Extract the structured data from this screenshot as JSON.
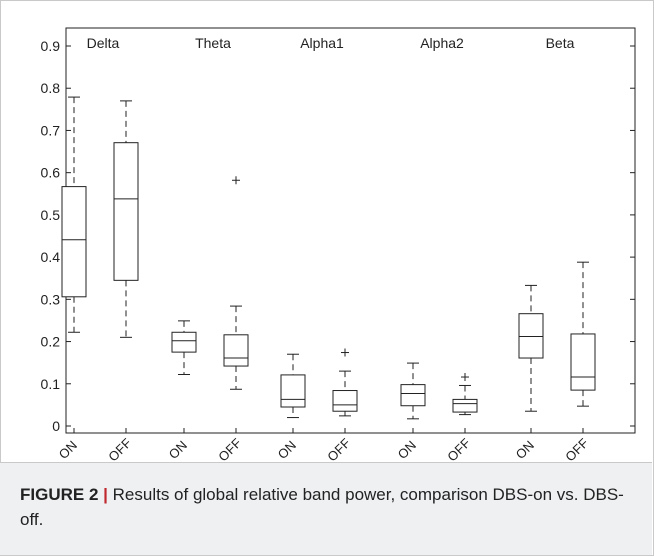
{
  "chart_data": {
    "type": "box",
    "ylim": [
      0,
      0.9
    ],
    "yticks": [
      0,
      0.1,
      0.2,
      0.3,
      0.4,
      0.5,
      0.6,
      0.7,
      0.8,
      0.9
    ],
    "groups": [
      {
        "name": "Delta",
        "boxes": [
          {
            "label": "ON",
            "whisker_low": 0.222,
            "q1": 0.306,
            "median": 0.441,
            "q3": 0.567,
            "whisker_high": 0.779,
            "outliers": []
          },
          {
            "label": "OFF",
            "whisker_low": 0.21,
            "q1": 0.345,
            "median": 0.538,
            "q3": 0.671,
            "whisker_high": 0.77,
            "outliers": []
          }
        ]
      },
      {
        "name": "Theta",
        "boxes": [
          {
            "label": "ON",
            "whisker_low": 0.122,
            "q1": 0.175,
            "median": 0.202,
            "q3": 0.222,
            "whisker_high": 0.249,
            "outliers": []
          },
          {
            "label": "OFF",
            "whisker_low": 0.087,
            "q1": 0.142,
            "median": 0.161,
            "q3": 0.216,
            "whisker_high": 0.284,
            "outliers": [
              0.582
            ]
          }
        ]
      },
      {
        "name": "Alpha1",
        "boxes": [
          {
            "label": "ON",
            "whisker_low": 0.02,
            "q1": 0.045,
            "median": 0.063,
            "q3": 0.121,
            "whisker_high": 0.17,
            "outliers": []
          },
          {
            "label": "OFF",
            "whisker_low": 0.024,
            "q1": 0.035,
            "median": 0.05,
            "q3": 0.084,
            "whisker_high": 0.13,
            "outliers": [
              0.174
            ]
          }
        ]
      },
      {
        "name": "Alpha2",
        "boxes": [
          {
            "label": "ON",
            "whisker_low": 0.017,
            "q1": 0.048,
            "median": 0.077,
            "q3": 0.098,
            "whisker_high": 0.149,
            "outliers": []
          },
          {
            "label": "OFF",
            "whisker_low": 0.027,
            "q1": 0.033,
            "median": 0.053,
            "q3": 0.063,
            "whisker_high": 0.096,
            "outliers": [
              0.116
            ]
          }
        ]
      },
      {
        "name": "Beta",
        "boxes": [
          {
            "label": "ON",
            "whisker_low": 0.035,
            "q1": 0.161,
            "median": 0.212,
            "q3": 0.266,
            "whisker_high": 0.333,
            "outliers": []
          },
          {
            "label": "OFF",
            "whisker_low": 0.047,
            "q1": 0.085,
            "median": 0.116,
            "q3": 0.218,
            "whisker_high": 0.388,
            "outliers": []
          }
        ]
      }
    ],
    "colors": {
      "line": "#222222",
      "axis": "#222222"
    }
  },
  "caption": {
    "label": "FIGURE 2",
    "separator": "|",
    "text": "Results of global relative band power, comparison DBS-on vs. DBS-off."
  }
}
